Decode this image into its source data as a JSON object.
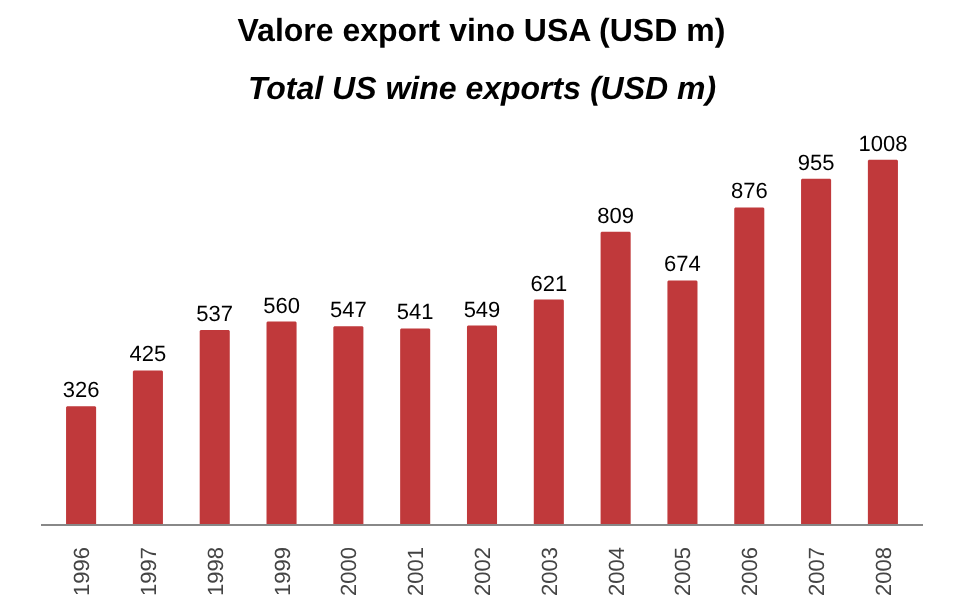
{
  "chart_data": {
    "type": "bar",
    "title": "Valore export vino USA (USD m)",
    "subtitle": "Total US wine exports (USD m)",
    "categories": [
      "1996",
      "1997",
      "1998",
      "1999",
      "2000",
      "2001",
      "2002",
      "2003",
      "2004",
      "2005",
      "2006",
      "2007",
      "2008"
    ],
    "values": [
      326,
      425,
      537,
      560,
      547,
      541,
      549,
      621,
      809,
      674,
      876,
      955,
      1008
    ],
    "color": "#c0393b",
    "data_labels": true,
    "grid": false
  }
}
